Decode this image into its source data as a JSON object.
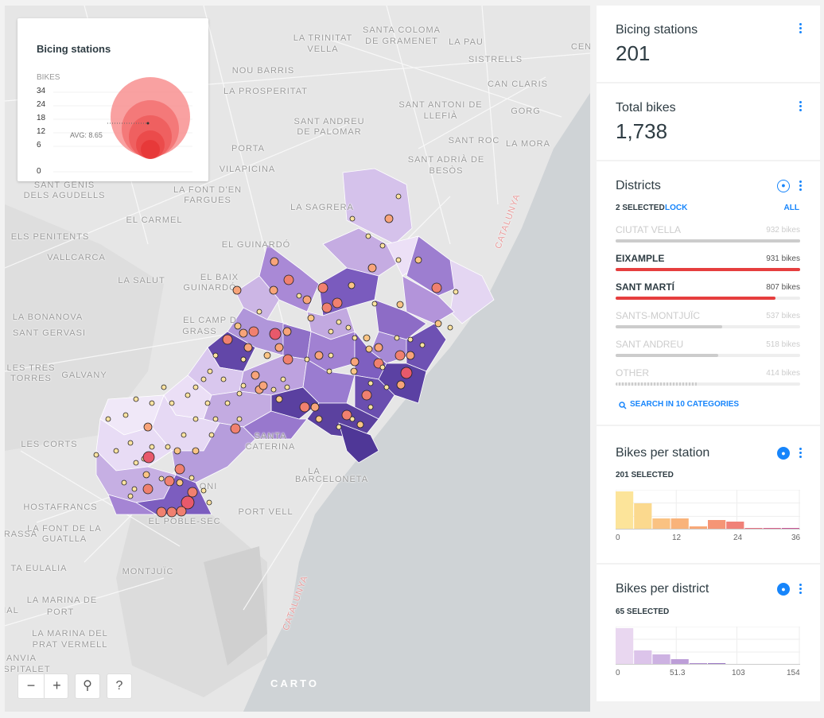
{
  "legend": {
    "title": "Bicing stations",
    "subtitle": "BIKES",
    "ticks": [
      "34",
      "24",
      "18",
      "12",
      "6",
      "0"
    ],
    "avg_label": "AVG: 8.65"
  },
  "map_labels": [
    "LA TRINITAT",
    "VELLA",
    "SANTA COLOMA",
    "DE GRAMENET",
    "LA PAU",
    "CEN",
    "NOU BARRIS",
    "SISTRELLS",
    "LA PROSPERITAT",
    "CAN CLARIS",
    "SANT ANDREU",
    "DE PALOMAR",
    "SANT ANTONI DE",
    "LLEFIÀ",
    "GORG",
    "SANT ROC",
    "LA MORA",
    "PORTA",
    "SANT ADRIÀ DE",
    "BESÒS",
    "VILAPICINA",
    "SANT GENÍS",
    "DELS AGUDELLS",
    "LA FONT D'EN",
    "FARGUES",
    "LA SAGRERA",
    "EL CARMEL",
    "CATALUNYA",
    "ELS PENITENTS",
    "EL GUINARDÓ",
    "VALLCARCA",
    "LA SALUT",
    "EL BAIX",
    "GUINARDÓ",
    "LA BONANOVA",
    "EL CAMP D",
    "GRASS",
    "SANT GERVASI",
    "LES TRES",
    "TORRES",
    "GALVANY",
    "SANTA",
    "CATERINA",
    "LES CORTS",
    "LA",
    "BARCELONETA",
    "PORT VELL",
    "HOSTAFRANCS",
    "EL POBLE-SEC",
    "LA FONT DE LA",
    "GUATLLA",
    "RASSA",
    "MONTJUÏC",
    "TA EULALIA",
    "LA MARINA DE",
    "PORT",
    "CATALUNYA",
    "LA MARINA DEL",
    "PRAT VERMELL",
    "ANVIA",
    "SPITALET",
    "IAL",
    "ONI"
  ],
  "map_controls": {
    "zoom_out": "−",
    "zoom_in": "+",
    "search": "⚲",
    "help": "?",
    "brand": "CARTO"
  },
  "widgets": {
    "stations": {
      "title": "Bicing stations",
      "value": "201"
    },
    "bikes": {
      "title": "Total bikes",
      "value": "1,738"
    },
    "districts": {
      "title": "Districts",
      "selected": "2 SELECTED",
      "lock": "LOCK",
      "all": "ALL",
      "search": "SEARCH IN 10 CATEGORIES",
      "categories": [
        {
          "name": "CIUTAT VELLA",
          "value": "932 bikes",
          "fraction": 1.0,
          "selected": false
        },
        {
          "name": "EIXAMPLE",
          "value": "931 bikes",
          "fraction": 0.999,
          "selected": true
        },
        {
          "name": "SANT MARTÍ",
          "value": "807 bikes",
          "fraction": 0.866,
          "selected": true
        },
        {
          "name": "SANTS-MONTJUÏC",
          "value": "537 bikes",
          "fraction": 0.576,
          "selected": false
        },
        {
          "name": "SANT ANDREU",
          "value": "518 bikes",
          "fraction": 0.556,
          "selected": false
        },
        {
          "name": "OTHER",
          "value": "414 bikes",
          "fraction": 0.444,
          "selected": false
        }
      ]
    },
    "per_station": {
      "title": "Bikes per station",
      "selected": "201 SELECTED",
      "axis": [
        "0",
        "12",
        "24",
        "36"
      ]
    },
    "per_district": {
      "title": "Bikes per district",
      "selected": "65 SELECTED",
      "axis": [
        "0",
        "51.3",
        "103",
        "154"
      ]
    }
  },
  "chart_data": [
    {
      "type": "bar",
      "title": "Bikes per station",
      "x_range": [
        0,
        36
      ],
      "values": [
        48,
        33,
        14,
        14,
        4,
        12,
        10,
        2,
        2,
        2
      ],
      "colors": [
        "#fce49a",
        "#fbd98e",
        "#fac282",
        "#f9b37a",
        "#f8a877",
        "#f59576",
        "#f08178",
        "#e46f80",
        "#d7608a",
        "#c75593"
      ]
    },
    {
      "type": "bar",
      "title": "Bikes per district",
      "x_range": [
        0,
        154
      ],
      "values": [
        46,
        18,
        13,
        7,
        2,
        2,
        1,
        0,
        1,
        0
      ],
      "colors": [
        "#e9d7f0",
        "#dcc4ea",
        "#cdb2e2",
        "#bd9ed8",
        "#ad8bcf",
        "#9c79c5",
        "#8c67bb",
        "#7b56b2",
        "#6b45a8",
        "#5c379f"
      ]
    }
  ]
}
